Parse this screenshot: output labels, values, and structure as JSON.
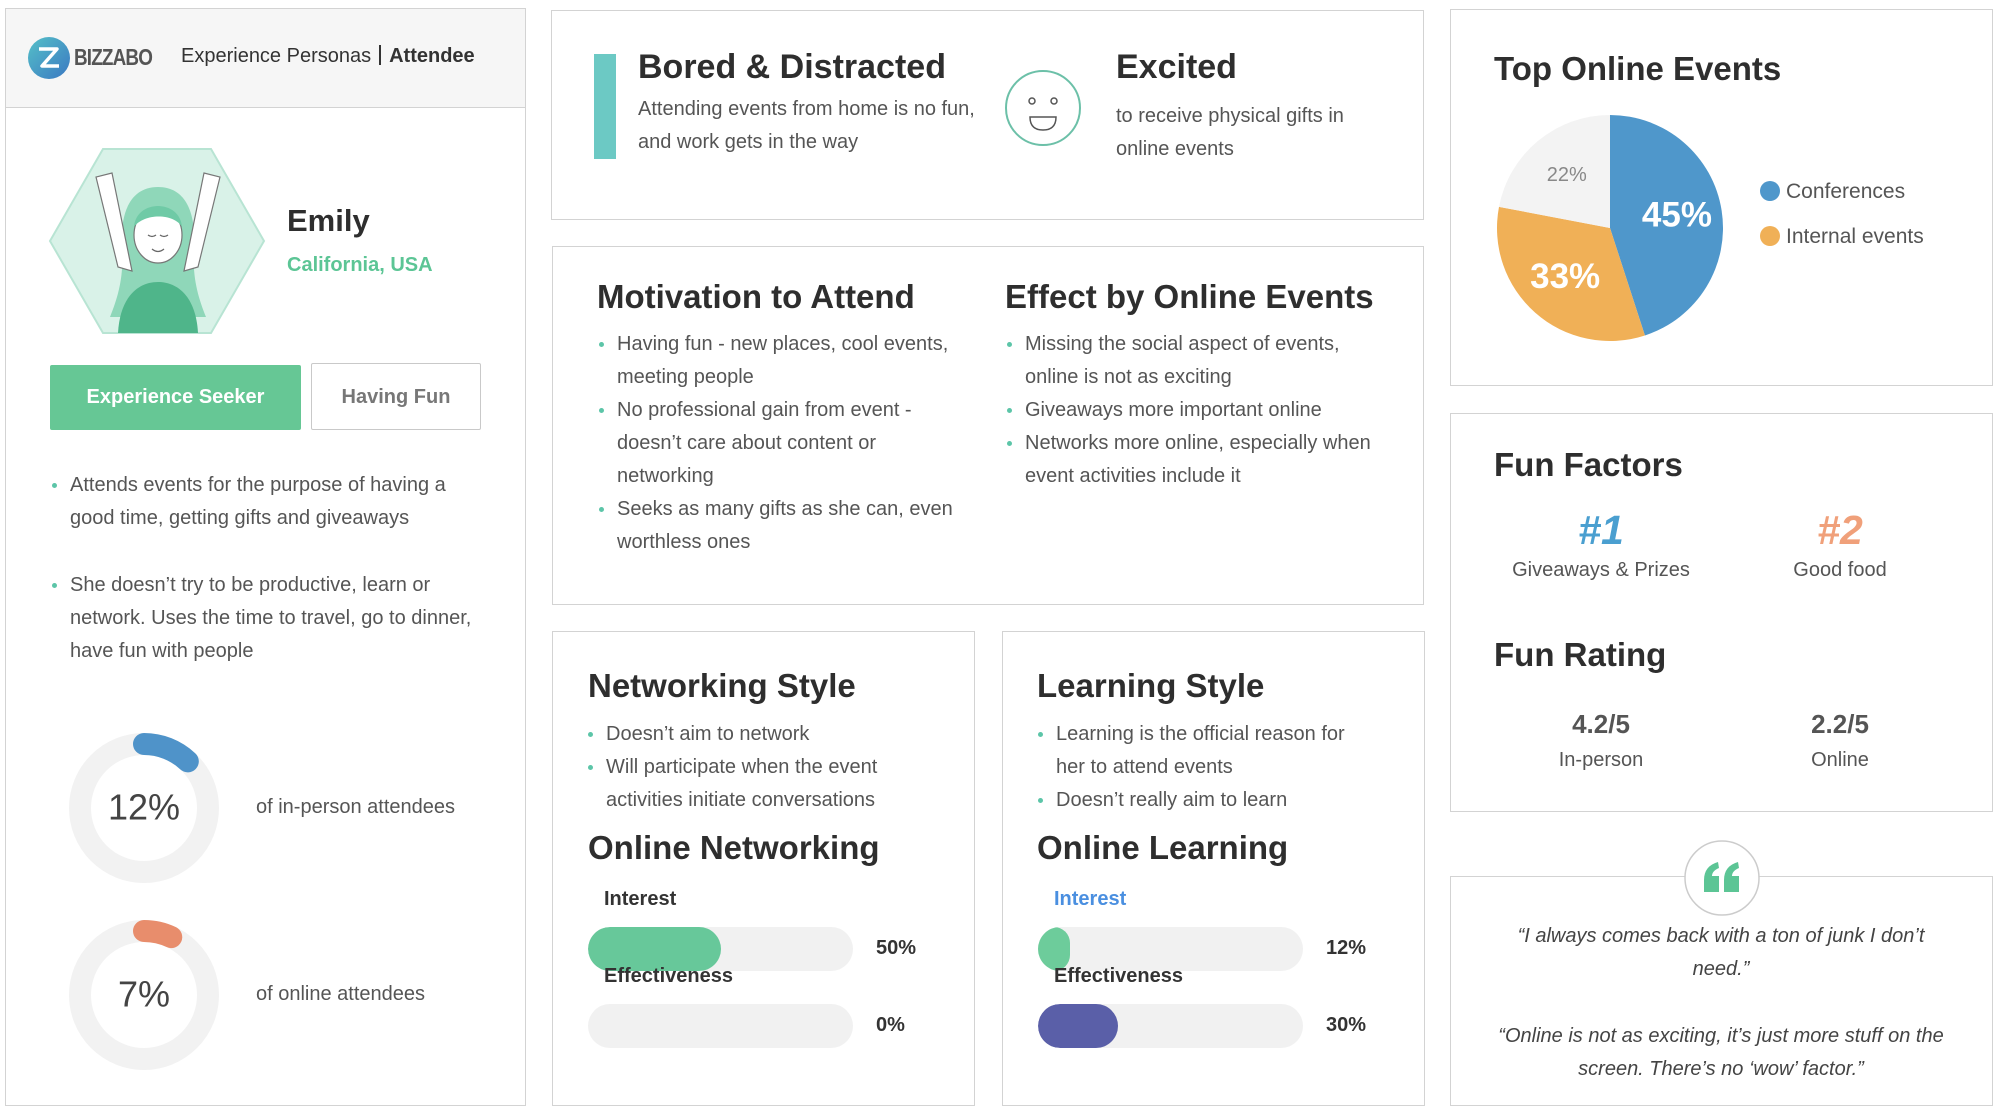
{
  "header": {
    "brand": "BIZZABO",
    "title": "Experience Personas",
    "role": "Attendee"
  },
  "profile": {
    "name": "Emily",
    "location": "California, USA",
    "tags": [
      "Experience Seeker",
      "Having Fun"
    ],
    "bullets": [
      "Attends events for the purpose of having a good time, getting gifts and giveaways",
      "She doesn’t try to be productive, learn or network. Uses the time to travel, go to dinner, have fun with people"
    ],
    "stats": [
      {
        "value": 12,
        "value_label": "12%",
        "caption": "of in-person attendees",
        "color": "#4f93c9"
      },
      {
        "value": 7,
        "value_label": "7%",
        "caption": "of online attendees",
        "color": "#e88d6c"
      }
    ]
  },
  "moods": [
    {
      "title": "Bored & Distracted",
      "text": "Attending events from home is no fun, and work gets in the way"
    },
    {
      "title": "Excited",
      "text": "to receive physical gifts in online events"
    }
  ],
  "motivation": {
    "title": "Motivation to Attend",
    "items": [
      "Having fun - new places, cool events, meeting people",
      "No professional gain from event - doesn’t care about content or networking",
      "Seeks as many gifts as she can, even worthless ones"
    ]
  },
  "effect": {
    "title": "Effect by Online Events",
    "items": [
      "Missing the social aspect of events, online is not as exciting",
      "Giveaways more important online",
      "Networks more online, especially when event activities include it"
    ]
  },
  "networking": {
    "title": "Networking Style",
    "items": [
      "Doesn’t aim to network",
      "Will participate when the event activities initiate conversations"
    ],
    "online_title": "Online Networking",
    "bars": [
      {
        "label": "Interest",
        "value": 50,
        "value_label": "50%",
        "color": "#67c89a"
      },
      {
        "label": "Effectiveness",
        "value": 0,
        "value_label": "0%",
        "color": "#67c89a"
      }
    ]
  },
  "learning": {
    "title": "Learning Style",
    "items": [
      "Learning is the official reason for her to attend events",
      "Doesn’t really aim to learn"
    ],
    "online_title": "Online Learning",
    "bars": [
      {
        "label": "Interest",
        "value": 12,
        "value_label": "12%",
        "color": "#6dcc9b"
      },
      {
        "label": "Effectiveness",
        "value": 30,
        "value_label": "30%",
        "color": "#5a5fa8"
      }
    ]
  },
  "top_events": {
    "type": "pie",
    "title": "Top Online Events",
    "categories": [
      "Conferences",
      "Internal events",
      null
    ],
    "values": [
      45,
      33,
      22
    ],
    "value_labels": [
      "45%",
      "33%",
      "22%"
    ],
    "colors": [
      "#4f97cb",
      "#f0b057",
      "#f3f3f3"
    ]
  },
  "fun": {
    "title": "Fun Factors",
    "factors": [
      {
        "rank": "#1",
        "label": "Giveaways & Prizes",
        "color": "#4a9fd0"
      },
      {
        "rank": "#2",
        "label": "Good food",
        "color": "#f0a07a"
      }
    ],
    "rating_title": "Fun Rating",
    "ratings": [
      {
        "score": "4.2/5",
        "label": "In-person"
      },
      {
        "score": "2.2/5",
        "label": "Online"
      }
    ]
  },
  "quotes": [
    "“I always comes back with a ton of junk I don’t need.”",
    "“Online is not as exciting, it’s just more stuff on the screen. There’s no ‘wow’ factor.”"
  ]
}
